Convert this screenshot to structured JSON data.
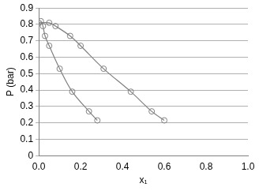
{
  "chart_data": {
    "type": "scatter",
    "x_label": "x₁",
    "y_label": "P (bar)",
    "series": [
      {
        "color": "#808080",
        "marker": "circle",
        "line_style": "solid",
        "x": [
          0.01,
          0.02,
          0.03,
          0.05,
          0.1,
          0.16,
          0.24,
          0.28
        ],
        "values": [
          0.82,
          0.79,
          0.73,
          0.67,
          0.53,
          0.39,
          0.27,
          0.215
        ]
      },
      {
        "color": "#808080",
        "marker": "circle",
        "line_style": "solid",
        "x": [
          0.0,
          0.05,
          0.08,
          0.15,
          0.2,
          0.31,
          0.44,
          0.54,
          0.6
        ],
        "values": [
          0.81,
          0.81,
          0.79,
          0.73,
          0.67,
          0.53,
          0.39,
          0.27,
          0.215
        ]
      }
    ],
    "xlim": [
      0,
      1
    ],
    "xticks": [
      {
        "value": 0,
        "label": "0.0"
      },
      0.2,
      0.4,
      0.6,
      0.8,
      {
        "value": 1,
        "label": "1.0"
      }
    ],
    "ylim": [
      0,
      0.9
    ],
    "yticks": [
      0,
      0.1,
      0.2,
      0.3,
      0.4,
      0.5,
      0.6,
      0.7,
      0.8,
      0.9
    ],
    "grid": "y"
  }
}
